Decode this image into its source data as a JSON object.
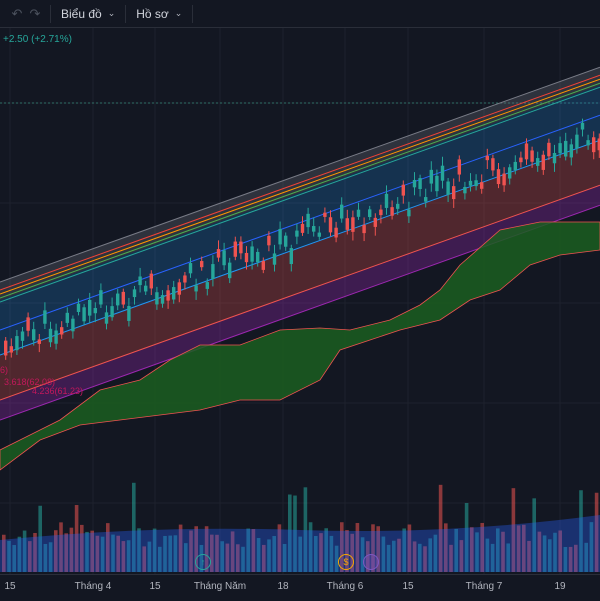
{
  "toolbar": {
    "undo_icon": "undo-icon",
    "redo_icon": "redo-icon",
    "chart_menu": "Biểu đồ",
    "profile_menu": "Hồ sơ"
  },
  "price_change": "+2.50 (+2.71%)",
  "fib_labels": [
    "6)",
    "3.618(62.08)",
    "4.236(61.23)"
  ],
  "x_axis": [
    "15",
    "Tháng 4",
    "15",
    "Tháng Năm",
    "18",
    "Tháng 6",
    "15",
    "Tháng 7",
    "19"
  ],
  "events": [
    {
      "type": "earnings-icon",
      "symbol": "↑",
      "color": "#26a69a"
    },
    {
      "type": "dividend-icon",
      "symbol": "$",
      "color": "#f7a600"
    },
    {
      "type": "split-icon",
      "symbol": "",
      "color": "#7e57c2"
    }
  ],
  "colors": {
    "up": "#26a69a",
    "down": "#ef5350",
    "background": "#131722",
    "cloud": "#1b5e20",
    "fib": "#c2185b"
  }
}
